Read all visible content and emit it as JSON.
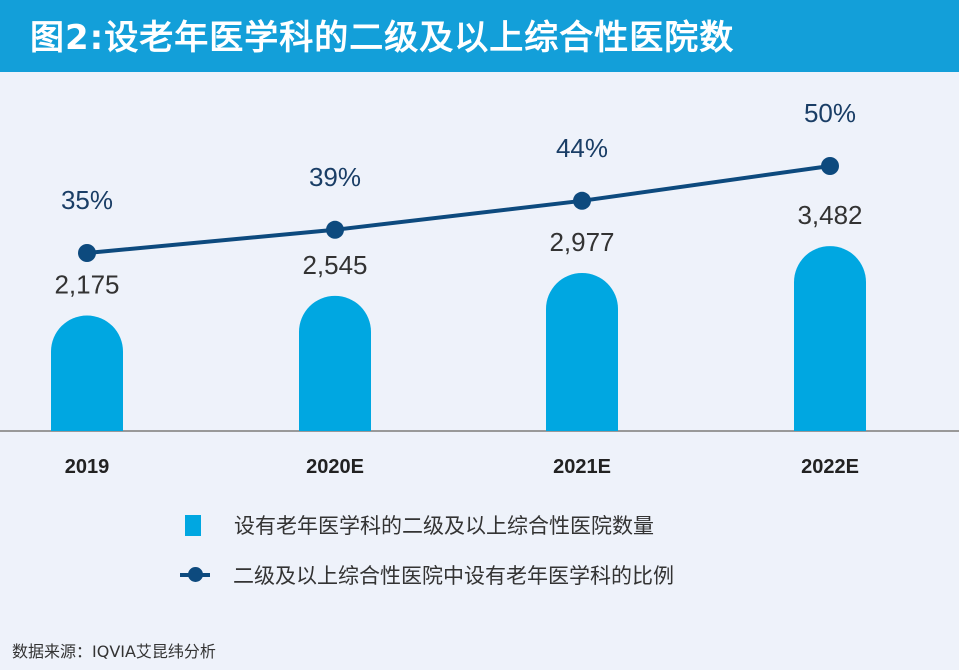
{
  "title": "图2:设老年医学科的二级及以上综合性医院数",
  "source": "数据来源：IQVIA艾昆纬分析",
  "colors": {
    "header": "#139fd9",
    "bar": "#00a7e1",
    "line": "#0d4a7e",
    "background": "#eef2fa"
  },
  "chart_data": {
    "type": "bar+line",
    "categories": [
      "2019",
      "2020E",
      "2021E",
      "2022E"
    ],
    "series": [
      {
        "name": "设有老年医学科的二级及以上综合性医院数量",
        "type": "bar",
        "values": [
          2175,
          2545,
          2977,
          3482
        ],
        "labels": [
          "2,175",
          "2,545",
          "2,977",
          "3,482"
        ]
      },
      {
        "name": "二级及以上综合性医院中设有老年医学科的比例",
        "type": "line",
        "values": [
          35,
          39,
          44,
          50
        ],
        "labels": [
          "35%",
          "39%",
          "44%",
          "50%"
        ]
      }
    ],
    "legend_position": "bottom",
    "grid": false
  }
}
